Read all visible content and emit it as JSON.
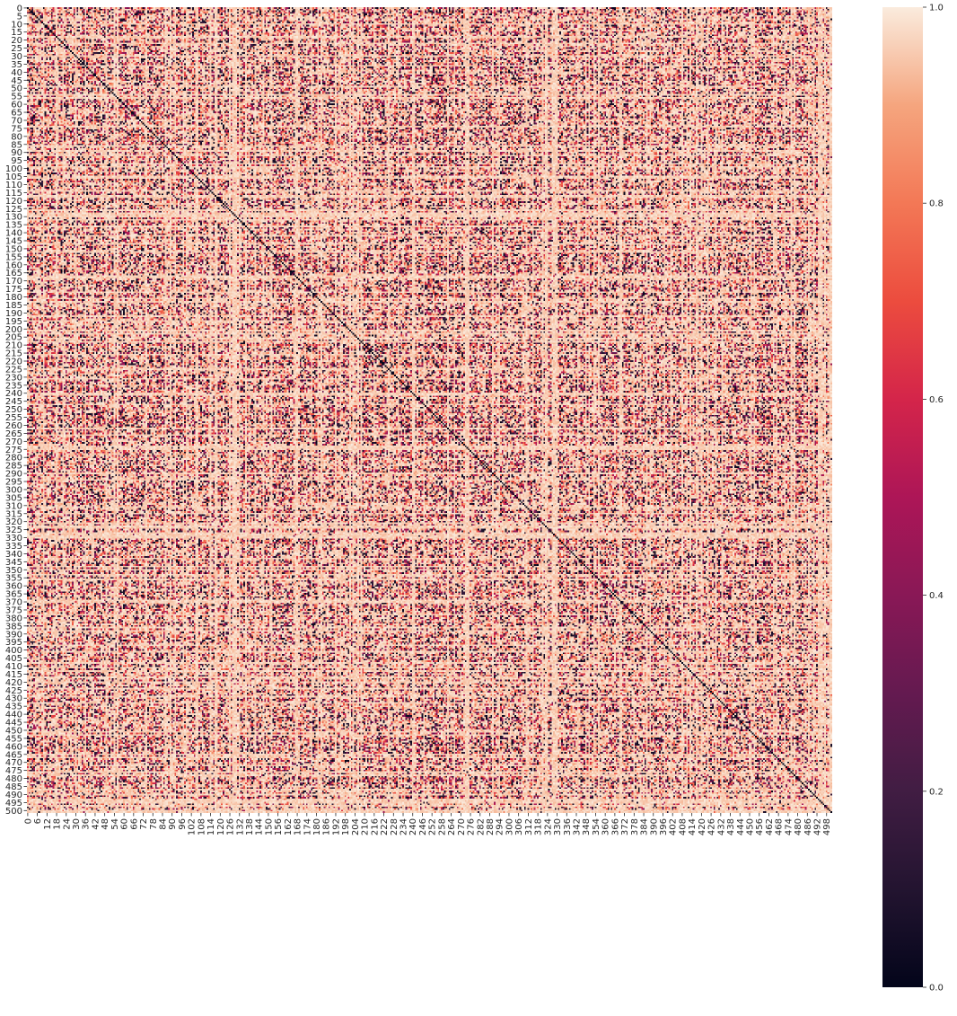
{
  "chart_data": {
    "type": "heatmap",
    "n": 502,
    "colormap": "rocket",
    "vmin": 0.0,
    "vmax": 1.0,
    "diagonal_value": 0.0,
    "y_tick_step": 5,
    "x_tick_step": 6,
    "y_tick_labels": [
      "0",
      "5",
      "10",
      "15",
      "20",
      "25",
      "30",
      "35",
      "40",
      "45",
      "50",
      "55",
      "60",
      "65",
      "70",
      "75",
      "80",
      "85",
      "90",
      "95",
      "100",
      "105",
      "110",
      "115",
      "120",
      "125",
      "130",
      "135",
      "140",
      "145",
      "150",
      "155",
      "160",
      "165",
      "170",
      "175",
      "180",
      "185",
      "190",
      "195",
      "200",
      "205",
      "210",
      "215",
      "220",
      "225",
      "230",
      "235",
      "240",
      "245",
      "250",
      "255",
      "260",
      "265",
      "270",
      "275",
      "280",
      "285",
      "290",
      "295",
      "300",
      "305",
      "310",
      "315",
      "320",
      "325",
      "330",
      "335",
      "340",
      "345",
      "350",
      "355",
      "360",
      "365",
      "370",
      "375",
      "380",
      "385",
      "390",
      "395",
      "400",
      "405",
      "410",
      "415",
      "420",
      "425",
      "430",
      "435",
      "440",
      "445",
      "450",
      "455",
      "460",
      "465",
      "470",
      "475",
      "480",
      "485",
      "490",
      "495",
      "500"
    ],
    "x_tick_labels": [
      "0",
      "6",
      "12",
      "18",
      "24",
      "30",
      "36",
      "42",
      "48",
      "54",
      "60",
      "66",
      "72",
      "78",
      "84",
      "90",
      "96",
      "102",
      "108",
      "114",
      "120",
      "126",
      "132",
      "138",
      "144",
      "150",
      "156",
      "162",
      "168",
      "174",
      "180",
      "186",
      "192",
      "198",
      "204",
      "210",
      "216",
      "222",
      "228",
      "234",
      "240",
      "246",
      "252",
      "258",
      "264",
      "270",
      "276",
      "282",
      "288",
      "294",
      "300",
      "306",
      "312",
      "318",
      "324",
      "330",
      "336",
      "342",
      "348",
      "354",
      "360",
      "366",
      "372",
      "378",
      "384",
      "390",
      "396",
      "402",
      "408",
      "414",
      "420",
      "426",
      "432",
      "438",
      "444",
      "450",
      "456",
      "462",
      "468",
      "474",
      "480",
      "486",
      "492",
      "498"
    ],
    "colorbar": {
      "ticks": [
        "0.0",
        "0.2",
        "0.4",
        "0.6",
        "0.8",
        "1.0"
      ],
      "values": [
        0.0,
        0.2,
        0.4,
        0.6,
        0.8,
        1.0
      ]
    },
    "title": "",
    "xlabel": "",
    "ylabel": ""
  }
}
